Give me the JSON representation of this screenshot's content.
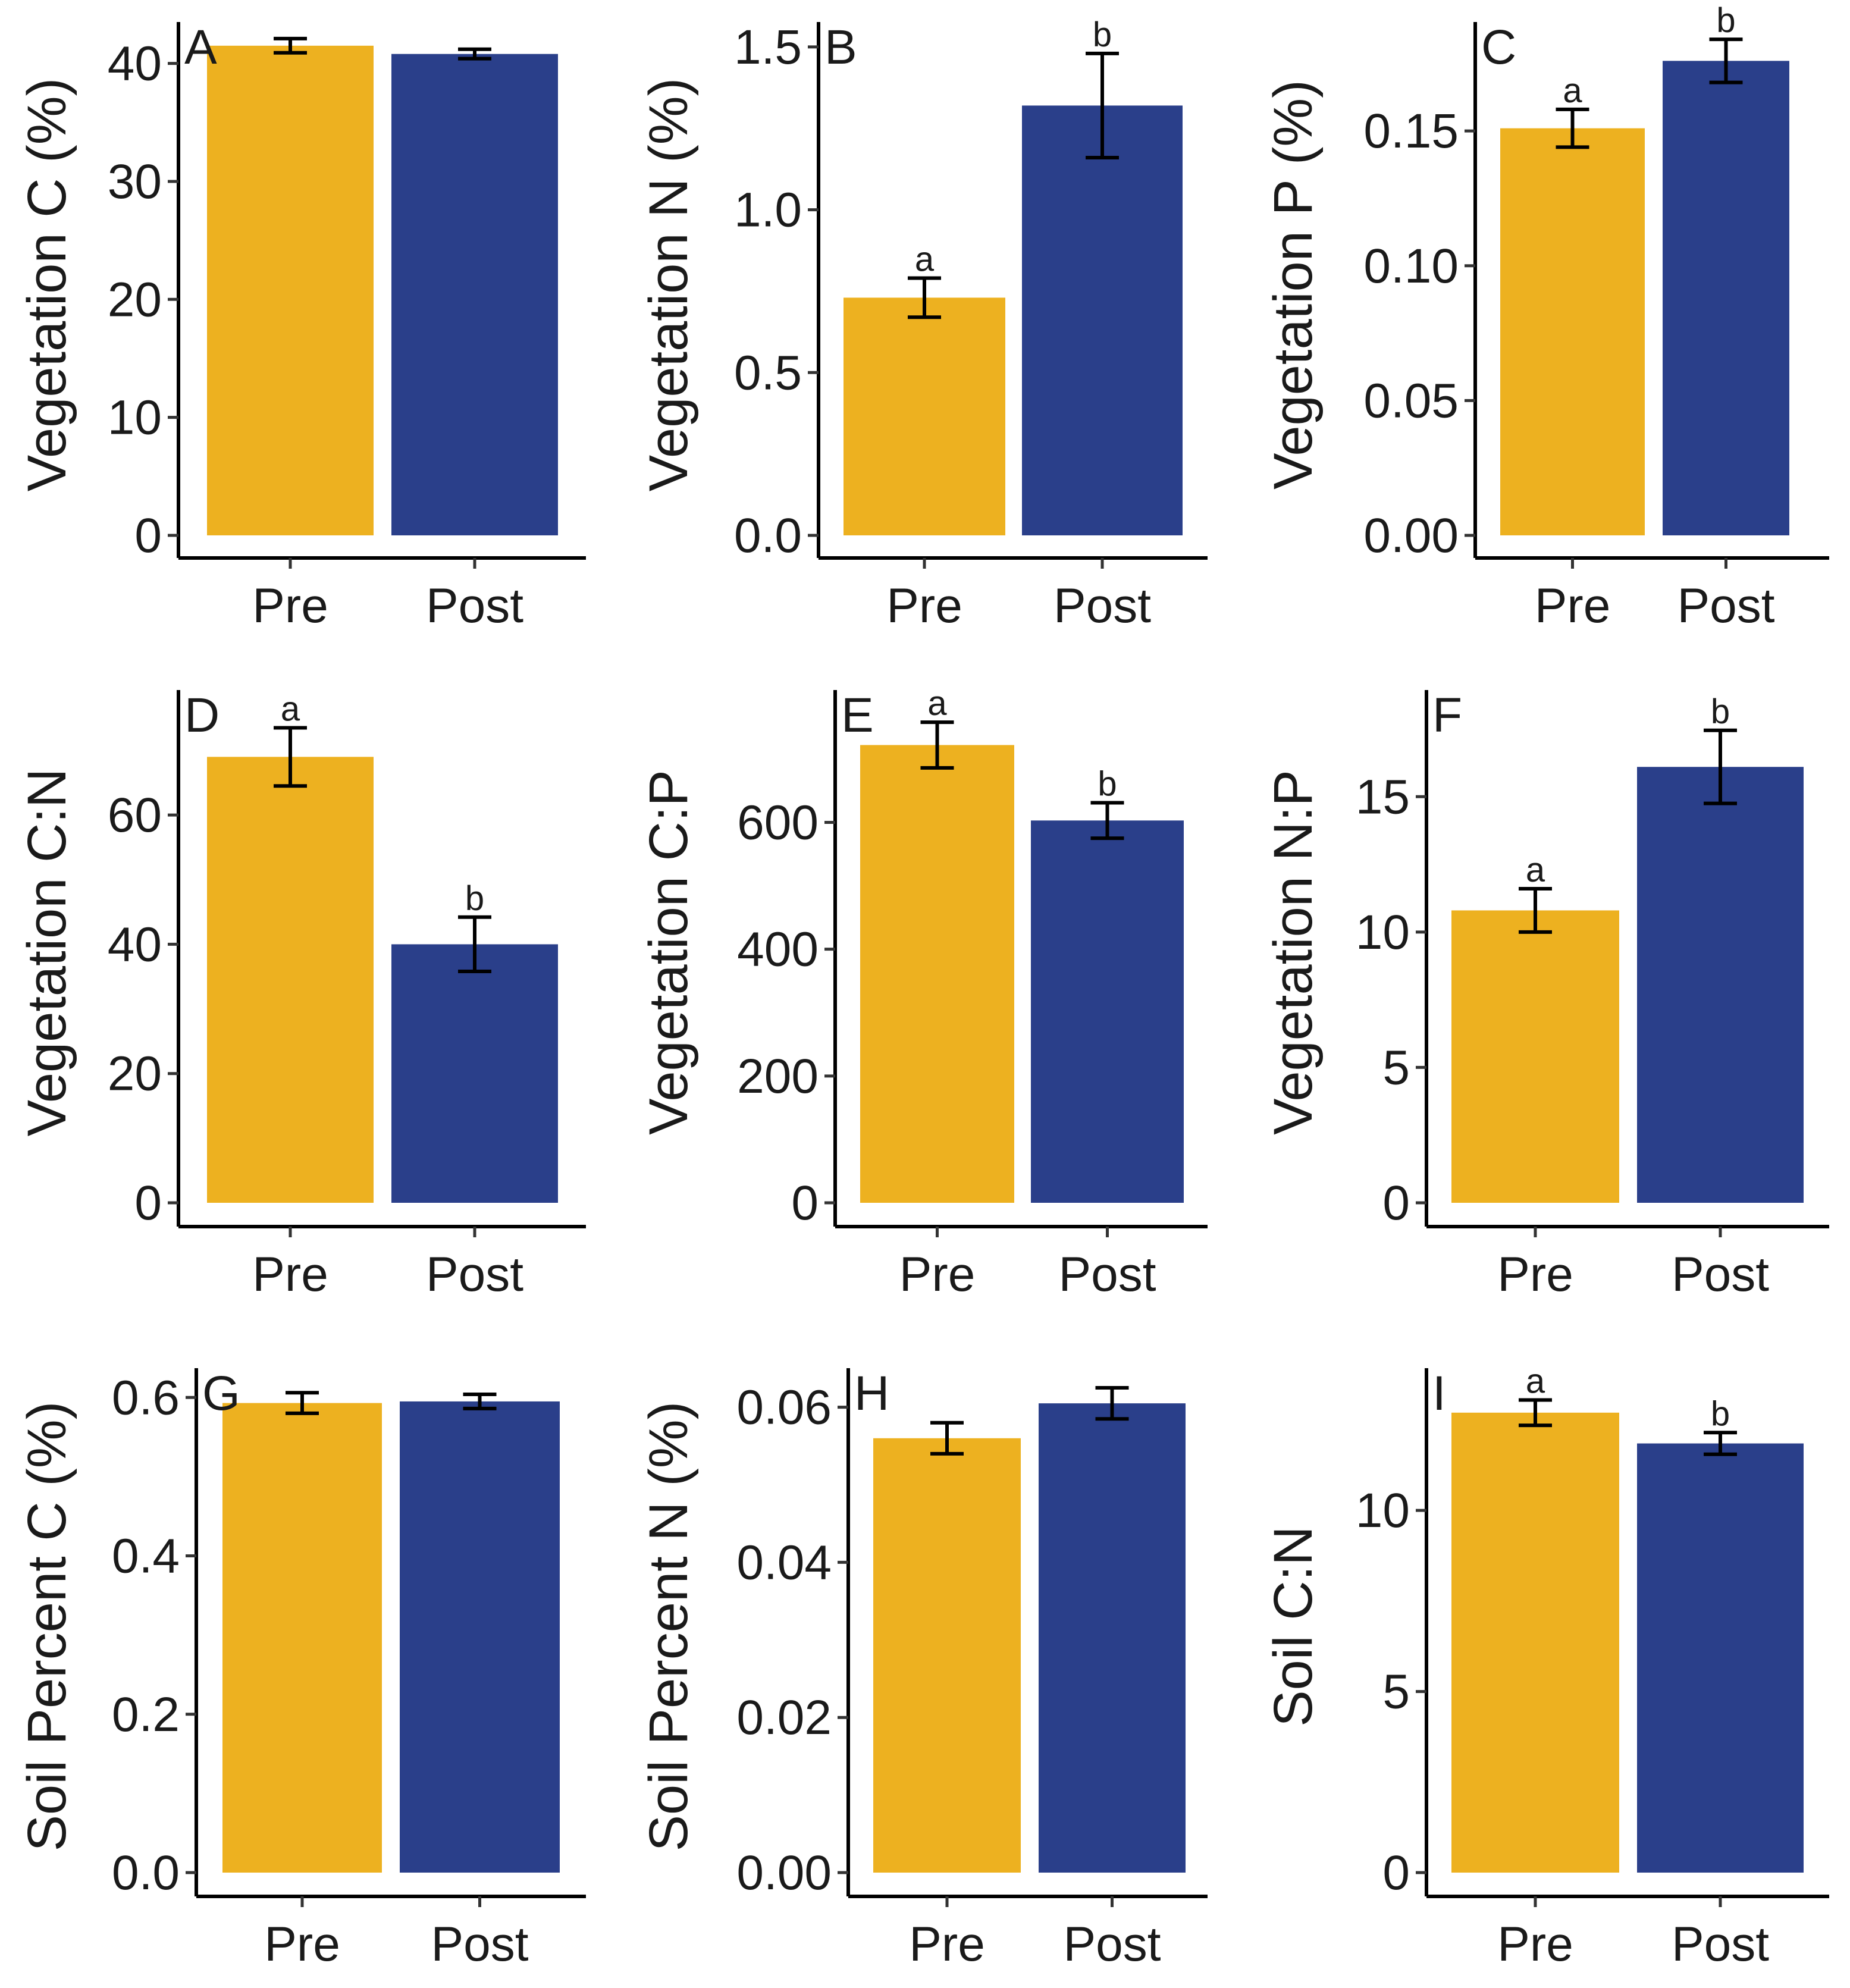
{
  "colors": {
    "pre": "#EDB120",
    "post": "#2A3F8A",
    "axis": "#000000"
  },
  "chart_data": [
    {
      "panel": "A",
      "type": "bar",
      "categories": [
        "Pre",
        "Post"
      ],
      "values": [
        41.5,
        40.8
      ],
      "errors": [
        0.6,
        0.4
      ],
      "sig": [
        "",
        ""
      ],
      "ylabel": "Vegetation C (%)",
      "ylim": [
        0,
        42.5
      ],
      "yticks": [
        0,
        10,
        20,
        30,
        40
      ],
      "tick_labels": [
        "0",
        "10",
        "20",
        "30",
        "40"
      ]
    },
    {
      "panel": "B",
      "type": "bar",
      "categories": [
        "Pre",
        "Post"
      ],
      "values": [
        0.73,
        1.32
      ],
      "errors": [
        0.06,
        0.16
      ],
      "sig": [
        "a",
        "b"
      ],
      "ylabel": "Vegetation N (%)",
      "ylim": [
        0,
        1.54
      ],
      "yticks": [
        0,
        0.5,
        1.0,
        1.5
      ],
      "tick_labels": [
        "0.0",
        "0.5",
        "1.0",
        "1.5"
      ]
    },
    {
      "panel": "C",
      "type": "bar",
      "categories": [
        "Pre",
        "Post"
      ],
      "values": [
        0.151,
        0.176
      ],
      "errors": [
        0.007,
        0.008
      ],
      "sig": [
        "a",
        "b"
      ],
      "ylabel": "Vegetation P (%)",
      "ylim": [
        0,
        0.186
      ],
      "yticks": [
        0,
        0.05,
        0.1,
        0.15
      ],
      "tick_labels": [
        "0.00",
        "0.05",
        "0.10",
        "0.15"
      ]
    },
    {
      "panel": "D",
      "type": "bar",
      "categories": [
        "Pre",
        "Post"
      ],
      "values": [
        69,
        40
      ],
      "errors": [
        4.5,
        4.2
      ],
      "sig": [
        "a",
        "b"
      ],
      "ylabel": "Vegetation C:N",
      "ylim": [
        0,
        77.5
      ],
      "yticks": [
        0,
        20,
        40,
        60
      ],
      "tick_labels": [
        "0",
        "20",
        "40",
        "60"
      ]
    },
    {
      "panel": "E",
      "type": "bar",
      "categories": [
        "Pre",
        "Post"
      ],
      "values": [
        722,
        603
      ],
      "errors": [
        36,
        28
      ],
      "sig": [
        "a",
        "b"
      ],
      "ylabel": "Vegetation C:P",
      "ylim": [
        0,
        790
      ],
      "yticks": [
        0,
        200,
        400,
        600
      ],
      "tick_labels": [
        "0",
        "200",
        "400",
        "600"
      ]
    },
    {
      "panel": "F",
      "type": "bar",
      "categories": [
        "Pre",
        "Post"
      ],
      "values": [
        10.8,
        16.1
      ],
      "errors": [
        0.8,
        1.35
      ],
      "sig": [
        "a",
        "b"
      ],
      "ylabel": "Vegetation N:P",
      "ylim": [
        0,
        18.5
      ],
      "yticks": [
        0,
        5,
        10,
        15
      ],
      "tick_labels": [
        "0",
        "5",
        "10",
        "15"
      ]
    },
    {
      "panel": "G",
      "type": "bar",
      "categories": [
        "Pre",
        "Post"
      ],
      "values": [
        0.593,
        0.595
      ],
      "errors": [
        0.013,
        0.009
      ],
      "sig": [
        "",
        ""
      ],
      "ylabel": "Soil Percent C (%)",
      "ylim": [
        0,
        0.622
      ],
      "yticks": [
        0,
        0.2,
        0.4,
        0.6
      ],
      "tick_labels": [
        "0.0",
        "0.2",
        "0.4",
        "0.6"
      ]
    },
    {
      "panel": "H",
      "type": "bar",
      "categories": [
        "Pre",
        "Post"
      ],
      "values": [
        0.056,
        0.0605
      ],
      "errors": [
        0.002,
        0.002
      ],
      "sig": [
        "",
        ""
      ],
      "ylabel": "Soil Percent N (%)",
      "ylim": [
        0,
        0.0635
      ],
      "yticks": [
        0,
        0.02,
        0.04,
        0.06
      ],
      "tick_labels": [
        "0.00",
        "0.02",
        "0.04",
        "0.06"
      ]
    },
    {
      "panel": "I",
      "type": "bar",
      "categories": [
        "Pre",
        "Post"
      ],
      "values": [
        12.7,
        11.85
      ],
      "errors": [
        0.35,
        0.3
      ],
      "sig": [
        "a",
        "b"
      ],
      "ylabel": "Soil C:N",
      "ylim": [
        0,
        13.6
      ],
      "yticks": [
        0,
        5,
        10
      ],
      "tick_labels": [
        "0",
        "5",
        "10"
      ]
    }
  ]
}
